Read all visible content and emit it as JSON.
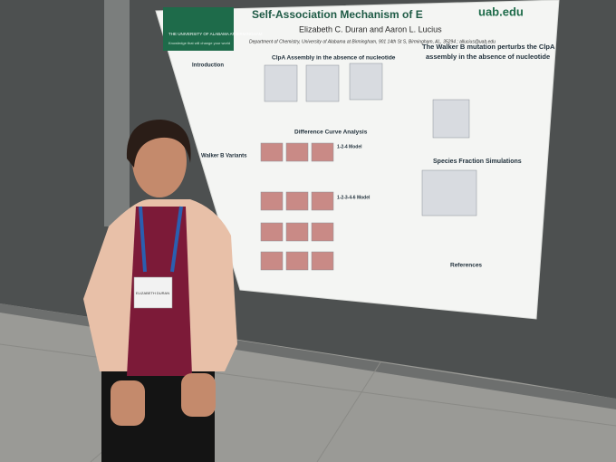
{
  "poster": {
    "title": "Self-Association Mechanism of E",
    "authors": "Elizabeth C. Duran and Aaron L. Lucius",
    "affiliation": "Department of Chemistry, University of Alabama at Birmingham, 901 14th St S, Birmingham, AL, 35294 ; allucius@uab.edu",
    "website": "uab.edu",
    "logo": {
      "name": "THE UNIVERSITY OF ALABAMA AT BIRMINGHAM",
      "tagline": "Knowledge that will change your world"
    },
    "sections": [
      "Introduction",
      "ClpA Assembly in the absence of nucleotide",
      "Difference Curve Analysis",
      "1-2-4 Model",
      "1-2-3-4-6 Model",
      "Walker B Variants",
      "The Walker B mutation perturbs the ClpA",
      "assembly in the absence of nucleotide",
      "Species Fraction Simulations",
      "References"
    ]
  },
  "badge": {
    "name": "ELIZABETH DURAN"
  }
}
